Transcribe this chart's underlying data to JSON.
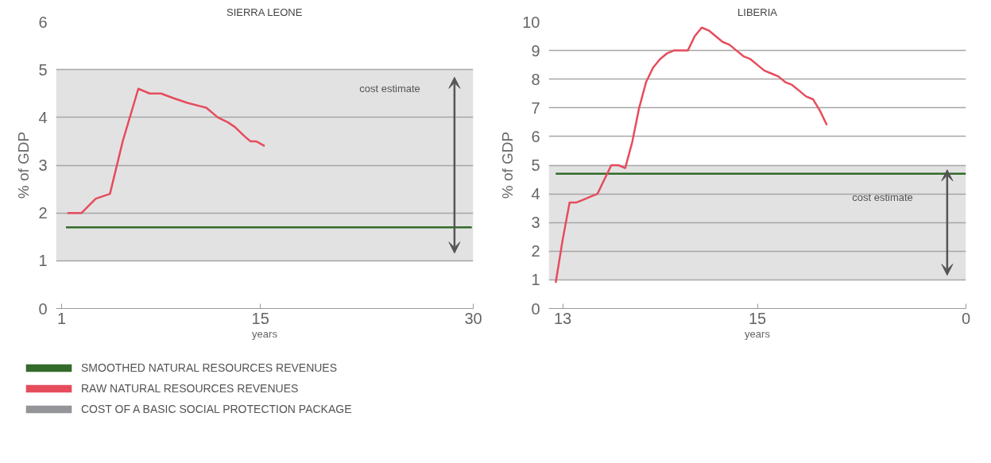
{
  "chart_data": [
    {
      "type": "line",
      "title": "SIERRA LEONE",
      "xlabel": "years",
      "ylabel": "% of GDP",
      "xlim": [
        0.6,
        30
      ],
      "xticks": [
        1,
        15,
        30
      ],
      "ylim": [
        0,
        6
      ],
      "yticks": [
        0,
        1,
        2,
        3,
        4,
        5,
        6
      ],
      "grid": "y",
      "legend": "bottom",
      "line_style": "solid",
      "series": [
        {
          "name": "SMOOTHED NATURAL RESOURCES REVENUES",
          "color": "#336b2a",
          "x": [
            1.3,
            29.9
          ],
          "values": [
            1.7,
            1.7
          ]
        },
        {
          "name": "RAW NATURAL RESOURCES REVENUES",
          "color": "#e64c5c",
          "x": [
            1.4,
            2.4,
            3.4,
            4.4,
            5.3,
            6.4,
            7.2,
            8.0,
            8.9,
            9.9,
            11.2,
            12.0,
            12.7,
            13.2,
            13.9,
            14.3,
            14.7,
            15.3
          ],
          "values": [
            2.0,
            2.0,
            2.3,
            2.4,
            3.5,
            4.6,
            4.5,
            4.5,
            4.4,
            4.3,
            4.2,
            4.0,
            3.9,
            3.8,
            3.6,
            3.5,
            3.5,
            3.4
          ]
        }
      ],
      "bands": [
        {
          "axis": "y",
          "from": 1,
          "to": 5,
          "label": "COST OF A BASIC SOCIAL PROTECTION PACKAGE",
          "color": "#939598"
        }
      ],
      "annotations": [
        "cost estimate"
      ]
    },
    {
      "type": "line",
      "title": "LIBERIA",
      "xlabel": "years",
      "ylabel": "% of GDP",
      "categories": [
        null,
        null,
        "13",
        null,
        null,
        null,
        null,
        null,
        null,
        null,
        null,
        null,
        null,
        null,
        null,
        null,
        null,
        null,
        null,
        null,
        null,
        null,
        null,
        null,
        null,
        null,
        null,
        null,
        null,
        null,
        "15",
        null,
        null,
        null,
        null,
        null,
        null,
        null,
        null,
        null,
        null,
        null,
        null,
        null,
        null,
        null,
        null,
        null,
        null,
        null,
        null,
        null,
        null,
        null,
        null,
        null,
        null,
        null,
        null,
        null,
        "0"
      ],
      "ylim": [
        0,
        10
      ],
      "yticks": [
        0,
        1,
        2,
        3,
        4,
        5,
        6,
        7,
        8,
        9,
        10
      ],
      "grid": "y",
      "line_style": "solid",
      "series": [
        {
          "color": "#336b2a",
          "values": [
            null,
            4.7,
            4.7,
            4.7,
            4.7,
            4.7,
            4.7,
            4.7,
            4.7,
            4.7,
            4.7,
            4.7,
            4.7,
            4.7,
            4.7,
            4.7,
            4.7,
            4.7,
            4.7,
            4.7,
            4.7,
            4.7,
            4.7,
            4.7,
            4.7,
            4.7,
            4.7,
            4.7,
            4.7,
            4.7,
            4.7,
            4.7,
            4.7,
            4.7,
            4.7,
            4.7,
            4.7,
            4.7,
            4.7,
            4.7,
            4.7,
            4.7,
            4.7,
            4.7,
            4.7,
            4.7,
            4.7,
            4.7,
            4.7,
            4.7,
            4.7,
            4.7,
            4.7,
            4.7,
            4.7,
            4.7,
            4.7,
            4.7,
            4.7,
            4.7,
            4.7
          ]
        },
        {
          "color": "#e64c5c",
          "values": [
            null,
            0.9,
            2.4,
            3.7,
            3.7,
            3.8,
            3.9,
            4.0,
            4.5,
            5.0,
            5.0,
            4.9,
            5.8,
            7.0,
            7.9,
            8.4,
            8.7,
            8.9,
            9.0,
            9.0,
            9.0,
            9.5,
            9.8,
            9.7,
            9.5,
            9.3,
            9.2,
            9.0,
            8.8,
            8.7,
            8.5,
            8.3,
            8.2,
            8.1,
            7.9,
            7.8,
            7.6,
            7.4,
            7.3,
            6.9,
            6.4,
            null,
            null,
            null,
            null,
            null,
            null,
            null,
            null,
            null,
            null,
            null,
            null,
            null,
            null,
            null,
            null,
            null,
            null,
            null,
            null
          ]
        }
      ],
      "bands": [
        {
          "axis": "y",
          "from": 1,
          "to": 5,
          "color": "#939598"
        }
      ],
      "annotations": [
        "cost estimate"
      ]
    }
  ]
}
